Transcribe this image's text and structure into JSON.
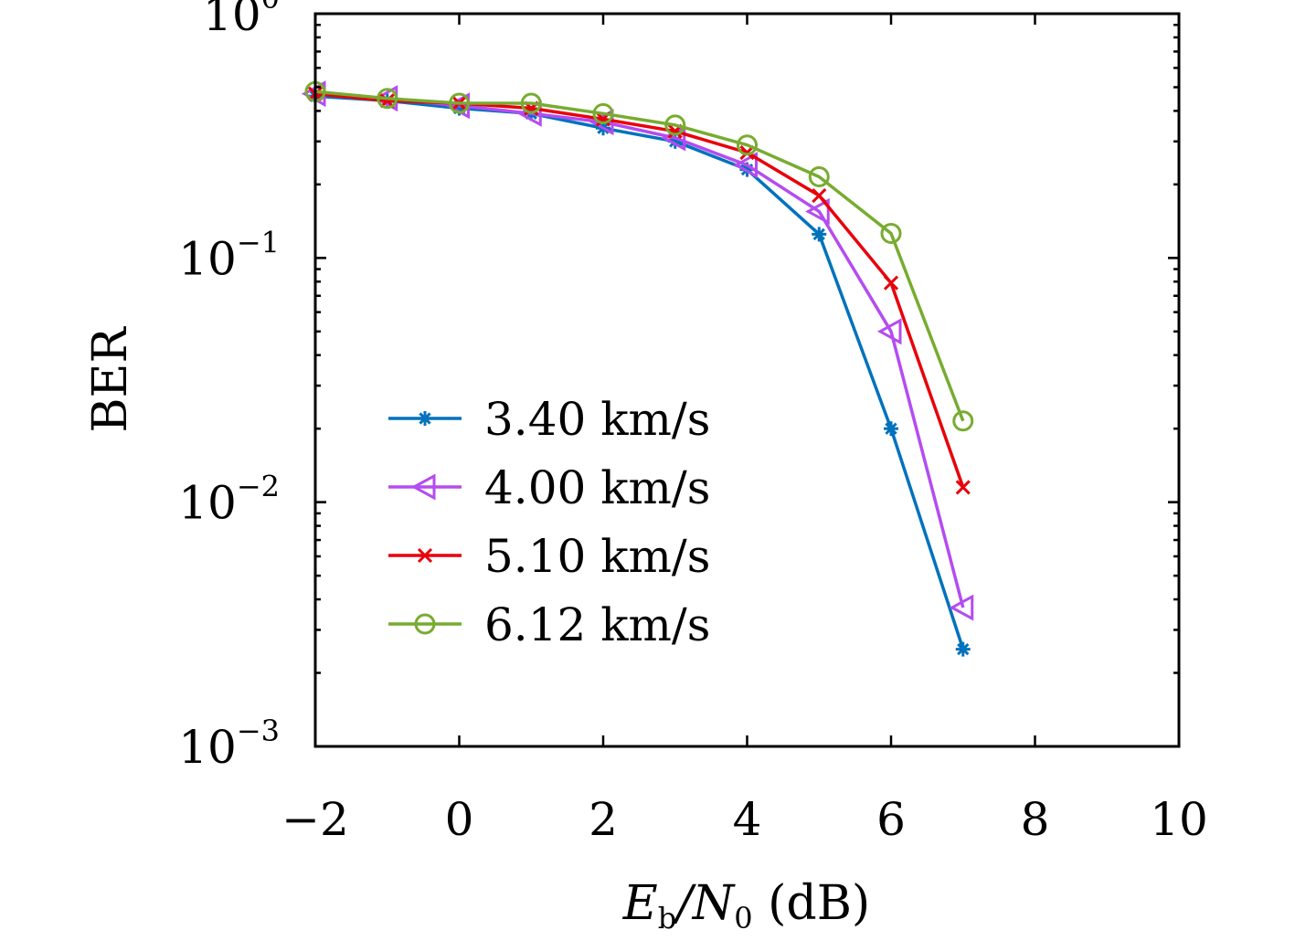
{
  "chart_data": {
    "type": "line",
    "title": "",
    "xlabel": {
      "main": "E",
      "sub1": "b",
      "mid": "/N",
      "sub2": "0",
      "unit": " (dB)"
    },
    "ylabel": "BER",
    "y_scale": "log",
    "xlim": [
      -2,
      10
    ],
    "ylim": [
      0.001,
      1
    ],
    "x_ticks": [
      -2,
      0,
      2,
      4,
      6,
      8,
      10
    ],
    "x_tick_labels": [
      "−2",
      "0",
      "2",
      "4",
      "6",
      "8",
      "10"
    ],
    "y_ticks": [
      1,
      0.1,
      0.01,
      0.001
    ],
    "y_tick_labels": [
      {
        "base": "10",
        "exp": "0"
      },
      {
        "base": "10",
        "exp": "−1"
      },
      {
        "base": "10",
        "exp": "−2"
      },
      {
        "base": "10",
        "exp": "−3"
      }
    ],
    "grid": false,
    "legend_position": "lower-left",
    "x": [
      -2,
      -1,
      0,
      1,
      2,
      3,
      4,
      5,
      6,
      7
    ],
    "series": [
      {
        "name": "3.40 km/s",
        "color": "#0072BD",
        "marker": "asterisk",
        "values": [
          0.46,
          0.44,
          0.41,
          0.39,
          0.34,
          0.3,
          0.23,
          0.125,
          0.02,
          0.0025
        ]
      },
      {
        "name": "4.00 km/s",
        "color": "#B44CF0",
        "marker": "triangle-left",
        "values": [
          0.47,
          0.45,
          0.42,
          0.39,
          0.36,
          0.31,
          0.24,
          0.155,
          0.05,
          0.0037
        ]
      },
      {
        "name": "5.10 km/s",
        "color": "#E8000B",
        "marker": "x",
        "values": [
          0.47,
          0.44,
          0.43,
          0.41,
          0.37,
          0.33,
          0.27,
          0.18,
          0.079,
          0.0115
        ]
      },
      {
        "name": "6.12 km/s",
        "color": "#77AC30",
        "marker": "circle",
        "values": [
          0.48,
          0.45,
          0.43,
          0.43,
          0.39,
          0.35,
          0.29,
          0.215,
          0.126,
          0.0215
        ]
      }
    ]
  }
}
